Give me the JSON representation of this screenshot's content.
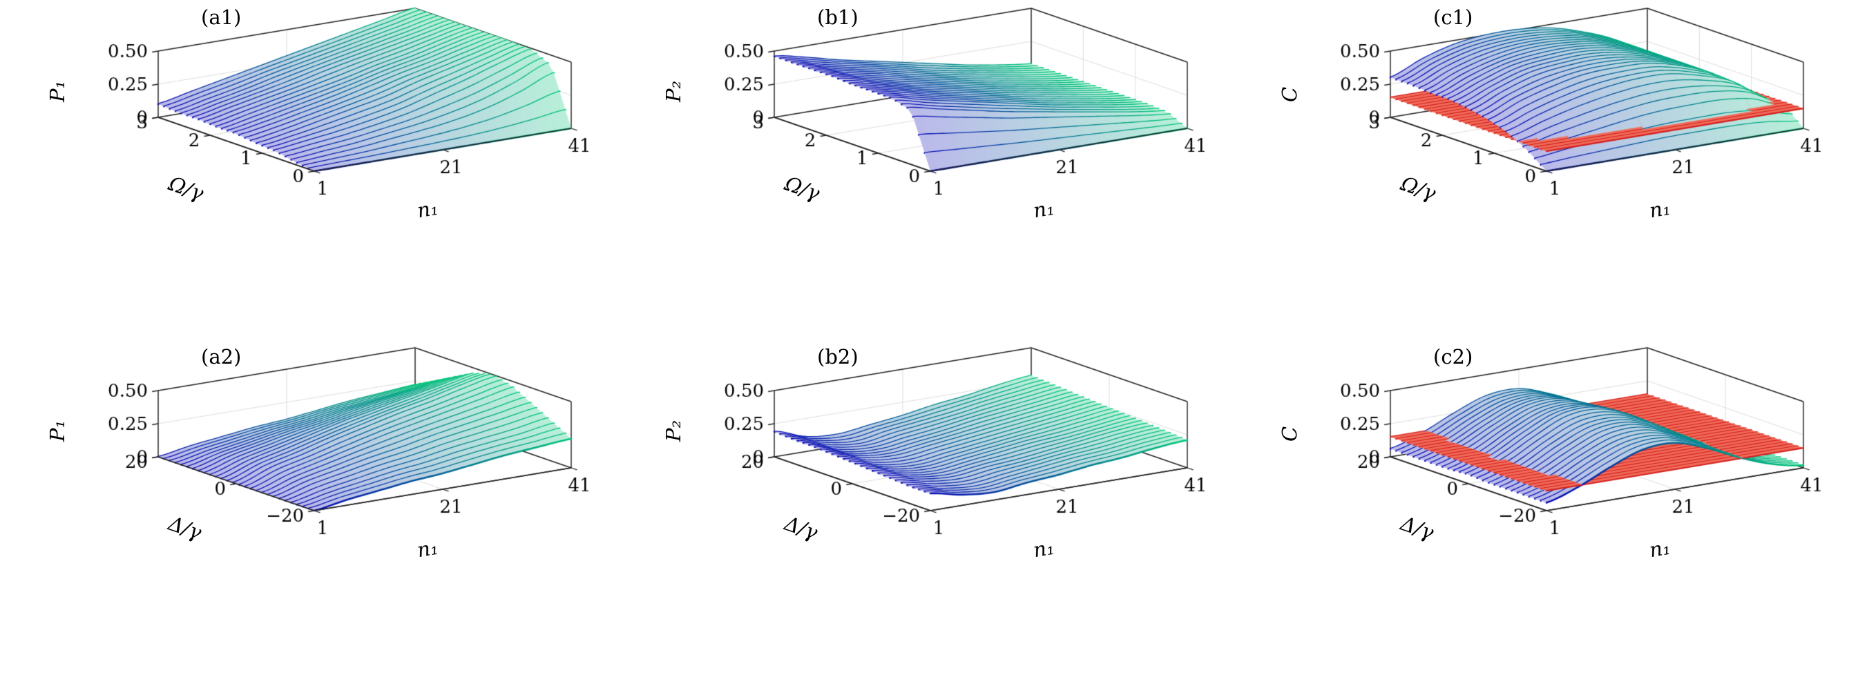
{
  "figure": {
    "background": "#ffffff"
  },
  "style": {
    "surface_line_start": "#0a0ab4",
    "surface_line_end": "#00c878",
    "fill_white_mix": 0.72,
    "red_plane_fill": "#f06a58",
    "red_plane_line": "#d42020",
    "box_color": "#222222",
    "grid_color": "#dcdcdc",
    "tick_font_px": 26
  },
  "chart_data": [
    {
      "id": "a1",
      "type": "surface",
      "label": "(a1)",
      "xlabel": "n₁",
      "ylabel": "Ω/γ",
      "zlabel": "P₁",
      "xlim": [
        1,
        41
      ],
      "ylim": [
        0,
        3
      ],
      "zlim": [
        0,
        0.5
      ],
      "x_ticks": [
        1,
        21,
        41
      ],
      "x_tick_labels": [
        "1",
        "21",
        "41"
      ],
      "y_ticks": [
        0,
        1,
        2,
        3
      ],
      "y_tick_labels": [
        "0",
        "1",
        "2",
        "3"
      ],
      "z_ticks": [
        0,
        0.25,
        0.5
      ],
      "z_tick_labels": [
        "0",
        "0.25",
        "0.50"
      ],
      "x_values": [
        1,
        6,
        11,
        16,
        21,
        26,
        31,
        36,
        41
      ],
      "y_values": [
        0,
        0.375,
        0.75,
        1.125,
        1.5,
        1.875,
        2.25,
        2.625,
        3
      ],
      "red_plane_z": null,
      "z": [
        [
          0,
          0,
          0,
          0,
          0,
          0,
          0,
          0,
          0
        ],
        [
          0.02,
          0.04,
          0.06,
          0.09,
          0.12,
          0.16,
          0.22,
          0.31,
          0.42
        ],
        [
          0.05,
          0.08,
          0.11,
          0.15,
          0.2,
          0.27,
          0.34,
          0.42,
          0.49
        ],
        [
          0.06,
          0.1,
          0.15,
          0.2,
          0.25,
          0.32,
          0.38,
          0.44,
          0.5
        ],
        [
          0.08,
          0.12,
          0.17,
          0.22,
          0.28,
          0.34,
          0.39,
          0.45,
          0.5
        ],
        [
          0.08,
          0.13,
          0.18,
          0.23,
          0.28,
          0.34,
          0.39,
          0.45,
          0.5
        ],
        [
          0.09,
          0.14,
          0.19,
          0.24,
          0.3,
          0.35,
          0.4,
          0.45,
          0.5
        ],
        [
          0.09,
          0.14,
          0.19,
          0.25,
          0.3,
          0.35,
          0.4,
          0.45,
          0.5
        ],
        [
          0.1,
          0.15,
          0.2,
          0.25,
          0.3,
          0.35,
          0.4,
          0.45,
          0.5
        ]
      ]
    },
    {
      "id": "b1",
      "type": "surface",
      "label": "(b1)",
      "xlabel": "n₁",
      "ylabel": "Ω/γ",
      "zlabel": "P₂",
      "xlim": [
        1,
        41
      ],
      "ylim": [
        0,
        3
      ],
      "zlim": [
        0,
        0.5
      ],
      "x_ticks": [
        1,
        21,
        41
      ],
      "x_tick_labels": [
        "1",
        "21",
        "41"
      ],
      "y_ticks": [
        0,
        1,
        2,
        3
      ],
      "y_tick_labels": [
        "0",
        "1",
        "2",
        "3"
      ],
      "z_ticks": [
        0,
        0.25,
        0.5
      ],
      "z_tick_labels": [
        "0",
        "0.25",
        "0.50"
      ],
      "x_values": [
        1,
        6,
        11,
        16,
        21,
        26,
        31,
        36,
        41
      ],
      "y_values": [
        0,
        0.375,
        0.75,
        1.125,
        1.5,
        1.875,
        2.25,
        2.625,
        3
      ],
      "red_plane_z": null,
      "z": [
        [
          0,
          0,
          0,
          0,
          0,
          0,
          0,
          0,
          0
        ],
        [
          0.41,
          0.36,
          0.31,
          0.26,
          0.22,
          0.18,
          0.14,
          0.1,
          0.07
        ],
        [
          0.45,
          0.39,
          0.34,
          0.29,
          0.24,
          0.19,
          0.15,
          0.11,
          0.08
        ],
        [
          0.45,
          0.4,
          0.34,
          0.29,
          0.24,
          0.19,
          0.15,
          0.11,
          0.08
        ],
        [
          0.45,
          0.4,
          0.34,
          0.29,
          0.24,
          0.19,
          0.15,
          0.11,
          0.08
        ],
        [
          0.46,
          0.4,
          0.34,
          0.29,
          0.24,
          0.19,
          0.15,
          0.11,
          0.08
        ],
        [
          0.46,
          0.4,
          0.35,
          0.29,
          0.24,
          0.19,
          0.15,
          0.11,
          0.08
        ],
        [
          0.46,
          0.4,
          0.35,
          0.3,
          0.24,
          0.19,
          0.15,
          0.11,
          0.08
        ],
        [
          0.46,
          0.41,
          0.35,
          0.3,
          0.25,
          0.2,
          0.15,
          0.11,
          0.08
        ]
      ]
    },
    {
      "id": "c1",
      "type": "surface",
      "label": "(c1)",
      "xlabel": "n₁",
      "ylabel": "Ω/γ",
      "zlabel": "C",
      "xlim": [
        1,
        41
      ],
      "ylim": [
        0,
        3
      ],
      "zlim": [
        0,
        0.5
      ],
      "x_ticks": [
        1,
        21,
        41
      ],
      "x_tick_labels": [
        "1",
        "21",
        "41"
      ],
      "y_ticks": [
        0,
        1,
        2,
        3
      ],
      "y_tick_labels": [
        "0",
        "1",
        "2",
        "3"
      ],
      "z_ticks": [
        0,
        0.25,
        0.5
      ],
      "z_tick_labels": [
        "0",
        "0.25",
        "0.50"
      ],
      "x_values": [
        1,
        6,
        11,
        16,
        21,
        26,
        31,
        36,
        41
      ],
      "y_values": [
        0,
        0.375,
        0.75,
        1.125,
        1.5,
        1.875,
        2.25,
        2.625,
        3
      ],
      "red_plane_z": 0.15,
      "z": [
        [
          0,
          0,
          0,
          0,
          0,
          0,
          0,
          0,
          0
        ],
        [
          0.11,
          0.16,
          0.2,
          0.24,
          0.27,
          0.28,
          0.28,
          0.24,
          0.13
        ],
        [
          0.19,
          0.27,
          0.34,
          0.39,
          0.42,
          0.42,
          0.37,
          0.29,
          0.14
        ],
        [
          0.24,
          0.34,
          0.41,
          0.46,
          0.47,
          0.46,
          0.4,
          0.3,
          0.14
        ],
        [
          0.27,
          0.37,
          0.45,
          0.48,
          0.49,
          0.46,
          0.4,
          0.3,
          0.14
        ],
        [
          0.29,
          0.38,
          0.46,
          0.49,
          0.5,
          0.47,
          0.4,
          0.3,
          0.14
        ],
        [
          0.29,
          0.39,
          0.46,
          0.5,
          0.5,
          0.47,
          0.4,
          0.3,
          0.14
        ],
        [
          0.3,
          0.4,
          0.47,
          0.5,
          0.5,
          0.47,
          0.4,
          0.3,
          0.14
        ],
        [
          0.3,
          0.4,
          0.47,
          0.5,
          0.5,
          0.47,
          0.4,
          0.3,
          0.14
        ]
      ]
    },
    {
      "id": "a2",
      "type": "surface",
      "label": "(a2)",
      "xlabel": "n₁",
      "ylabel": "Δ/γ",
      "zlabel": "P₁",
      "xlim": [
        1,
        41
      ],
      "ylim": [
        -20,
        20
      ],
      "zlim": [
        0,
        0.5
      ],
      "x_ticks": [
        1,
        21,
        41
      ],
      "x_tick_labels": [
        "1",
        "21",
        "41"
      ],
      "y_ticks": [
        -20,
        0,
        20
      ],
      "y_tick_labels": [
        "−20",
        "0",
        "20"
      ],
      "z_ticks": [
        0,
        0.25,
        0.5
      ],
      "z_tick_labels": [
        "0",
        "0.25",
        "0.50"
      ],
      "x_values": [
        1,
        6,
        11,
        16,
        21,
        26,
        31,
        36,
        41
      ],
      "y_values": [
        -20,
        -15,
        -10,
        -5,
        0,
        5,
        10,
        15,
        20
      ],
      "red_plane_z": null,
      "z": [
        [
          0,
          0.04,
          0.07,
          0.1,
          0.12,
          0.15,
          0.18,
          0.2,
          0.22
        ],
        [
          0,
          0.05,
          0.09,
          0.13,
          0.16,
          0.2,
          0.23,
          0.26,
          0.3
        ],
        [
          0,
          0.07,
          0.12,
          0.17,
          0.21,
          0.26,
          0.3,
          0.34,
          0.38
        ],
        [
          0,
          0.08,
          0.14,
          0.2,
          0.26,
          0.31,
          0.36,
          0.41,
          0.46
        ],
        [
          0,
          0.09,
          0.15,
          0.22,
          0.28,
          0.34,
          0.39,
          0.45,
          0.5
        ],
        [
          0,
          0.08,
          0.14,
          0.2,
          0.26,
          0.31,
          0.36,
          0.41,
          0.46
        ],
        [
          0,
          0.07,
          0.12,
          0.17,
          0.21,
          0.26,
          0.3,
          0.34,
          0.38
        ],
        [
          0,
          0.05,
          0.09,
          0.13,
          0.16,
          0.2,
          0.23,
          0.26,
          0.3
        ],
        [
          0,
          0.04,
          0.07,
          0.1,
          0.12,
          0.15,
          0.18,
          0.2,
          0.22
        ]
      ]
    },
    {
      "id": "b2",
      "type": "surface",
      "label": "(b2)",
      "xlabel": "n₁",
      "ylabel": "Δ/γ",
      "zlabel": "P₂",
      "xlim": [
        1,
        41
      ],
      "ylim": [
        -20,
        20
      ],
      "zlim": [
        0,
        0.5
      ],
      "x_ticks": [
        1,
        21,
        41
      ],
      "x_tick_labels": [
        "1",
        "21",
        "41"
      ],
      "y_ticks": [
        -20,
        0,
        20
      ],
      "y_tick_labels": [
        "−20",
        "0",
        "20"
      ],
      "z_ticks": [
        0,
        0.25,
        0.5
      ],
      "z_tick_labels": [
        "0",
        "0.25",
        "0.50"
      ],
      "x_values": [
        1,
        6,
        11,
        16,
        21,
        26,
        31,
        36,
        41
      ],
      "y_values": [
        -20,
        -15,
        -10,
        -5,
        0,
        5,
        10,
        15,
        20
      ],
      "red_plane_z": null,
      "z": [
        [
          0.13,
          0.08,
          0.06,
          0.09,
          0.11,
          0.14,
          0.16,
          0.19,
          0.21
        ],
        [
          0.13,
          0.08,
          0.06,
          0.09,
          0.12,
          0.15,
          0.17,
          0.2,
          0.22
        ],
        [
          0.14,
          0.09,
          0.07,
          0.1,
          0.12,
          0.15,
          0.18,
          0.21,
          0.23
        ],
        [
          0.15,
          0.09,
          0.07,
          0.1,
          0.13,
          0.16,
          0.18,
          0.21,
          0.24
        ],
        [
          0.16,
          0.09,
          0.07,
          0.1,
          0.13,
          0.16,
          0.19,
          0.22,
          0.25
        ],
        [
          0.17,
          0.1,
          0.08,
          0.11,
          0.14,
          0.17,
          0.2,
          0.23,
          0.26
        ],
        [
          0.18,
          0.1,
          0.08,
          0.11,
          0.14,
          0.18,
          0.21,
          0.24,
          0.27
        ],
        [
          0.18,
          0.11,
          0.08,
          0.12,
          0.15,
          0.18,
          0.22,
          0.25,
          0.28
        ],
        [
          0.19,
          0.11,
          0.09,
          0.12,
          0.15,
          0.19,
          0.22,
          0.26,
          0.29
        ]
      ]
    },
    {
      "id": "c2",
      "type": "surface",
      "label": "(c2)",
      "xlabel": "n₁",
      "ylabel": "Δ/γ",
      "zlabel": "C",
      "xlim": [
        1,
        41
      ],
      "ylim": [
        -20,
        20
      ],
      "zlim": [
        0,
        0.5
      ],
      "x_ticks": [
        1,
        21,
        41
      ],
      "x_tick_labels": [
        "1",
        "21",
        "41"
      ],
      "y_ticks": [
        -20,
        0,
        20
      ],
      "y_tick_labels": [
        "−20",
        "0",
        "20"
      ],
      "z_ticks": [
        0,
        0.25,
        0.5
      ],
      "z_tick_labels": [
        "0",
        "0.25",
        "0.50"
      ],
      "x_values": [
        1,
        6,
        11,
        16,
        21,
        26,
        31,
        36,
        41
      ],
      "y_values": [
        -20,
        -15,
        -10,
        -5,
        0,
        5,
        10,
        15,
        20
      ],
      "red_plane_z": 0.15,
      "z": [
        [
          0.06,
          0.14,
          0.25,
          0.34,
          0.35,
          0.27,
          0.16,
          0.07,
          0.02
        ],
        [
          0.06,
          0.14,
          0.26,
          0.35,
          0.36,
          0.28,
          0.16,
          0.07,
          0.02
        ],
        [
          0.06,
          0.15,
          0.27,
          0.37,
          0.38,
          0.29,
          0.17,
          0.07,
          0.02
        ],
        [
          0.06,
          0.15,
          0.28,
          0.38,
          0.39,
          0.31,
          0.18,
          0.08,
          0.03
        ],
        [
          0.07,
          0.16,
          0.29,
          0.4,
          0.41,
          0.32,
          0.18,
          0.08,
          0.03
        ],
        [
          0.06,
          0.15,
          0.28,
          0.38,
          0.39,
          0.31,
          0.18,
          0.08,
          0.03
        ],
        [
          0.06,
          0.15,
          0.27,
          0.37,
          0.38,
          0.29,
          0.17,
          0.07,
          0.02
        ],
        [
          0.06,
          0.14,
          0.26,
          0.35,
          0.36,
          0.28,
          0.16,
          0.07,
          0.02
        ],
        [
          0.06,
          0.14,
          0.25,
          0.34,
          0.35,
          0.27,
          0.16,
          0.07,
          0.02
        ]
      ]
    }
  ]
}
